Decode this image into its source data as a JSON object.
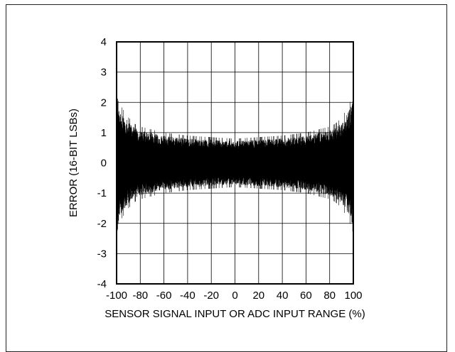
{
  "chart_data": {
    "type": "line",
    "title": "",
    "xlabel": "SENSOR SIGNAL INPUT OR ADC INPUT RANGE (%)",
    "ylabel": "ERROR (16-BIT LSBs)",
    "xlim": [
      -100,
      100
    ],
    "ylim": [
      -4,
      4
    ],
    "xticks": [
      -100,
      -80,
      -60,
      -40,
      -20,
      0,
      20,
      40,
      60,
      80,
      100
    ],
    "yticks": [
      4,
      3,
      2,
      1,
      0,
      -1,
      -2,
      -3,
      -4
    ],
    "grid": true,
    "legend": "none",
    "series": [
      {
        "color": "#000000",
        "envelope": {
          "x": [
            -100,
            -98,
            -95,
            -90,
            -85,
            -80,
            -70,
            -60,
            -40,
            -20,
            0,
            20,
            40,
            60,
            70,
            80,
            85,
            90,
            95,
            98,
            100
          ],
          "upper": [
            3.0,
            2.0,
            1.8,
            1.5,
            1.3,
            1.2,
            1.1,
            1.0,
            0.9,
            0.85,
            0.8,
            0.85,
            0.9,
            1.0,
            1.1,
            1.2,
            1.3,
            1.5,
            1.8,
            2.1,
            2.8
          ],
          "lower": [
            -3.0,
            -2.0,
            -1.8,
            -1.5,
            -1.3,
            -1.2,
            -1.1,
            -1.0,
            -0.9,
            -0.85,
            -0.8,
            -0.85,
            -0.9,
            -1.0,
            -1.1,
            -1.2,
            -1.3,
            -1.5,
            -1.8,
            -2.1,
            -2.8
          ]
        }
      }
    ]
  }
}
